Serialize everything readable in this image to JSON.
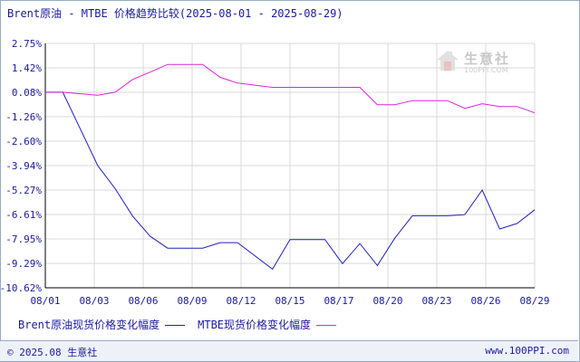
{
  "title": "Brent原油 - MTBE 价格趋势比较(2025-08-01 - 2025-08-29)",
  "watermark": {
    "name": "生意社",
    "url": "100PPI.COM"
  },
  "footer": {
    "copyright": "© 2025.08 生意社",
    "site": "www.100PPI.com"
  },
  "colors": {
    "brent": "#2020c0",
    "mtbe": "#e020e0",
    "grid": "#d8d8d8",
    "axis": "#000000",
    "text": "#1a1aa0"
  },
  "chart_data": {
    "type": "line",
    "title": "Brent原油 - MTBE 价格趋势比较(2025-08-01 - 2025-08-29)",
    "xlabel": "",
    "ylabel": "",
    "x_tick_labels": [
      "08/01",
      "08/03",
      "08/06",
      "08/09",
      "08/12",
      "08/15",
      "08/17",
      "08/20",
      "08/23",
      "08/26",
      "08/29"
    ],
    "y_tick_labels": [
      "2.75%",
      "1.42%",
      "0.08%",
      "-1.26%",
      "-2.60%",
      "-3.94%",
      "-5.27%",
      "-6.61%",
      "-7.95%",
      "-9.29%",
      "-10.62%"
    ],
    "ylim": [
      -10.62,
      2.75
    ],
    "x": [
      "08/01",
      "08/02",
      "08/03",
      "08/04",
      "08/05",
      "08/06",
      "08/07",
      "08/08",
      "08/09",
      "08/10",
      "08/11",
      "08/12",
      "08/13",
      "08/14",
      "08/15",
      "08/16",
      "08/17",
      "08/18",
      "08/19",
      "08/20",
      "08/21",
      "08/22",
      "08/23",
      "08/24",
      "08/25",
      "08/26",
      "08/27",
      "08/28",
      "08/29"
    ],
    "grid": true,
    "legend_position": "bottom",
    "series": [
      {
        "name": "Brent原油现货价格变化幅度",
        "color": "#2020c0",
        "values": [
          0.08,
          0.08,
          null,
          -3.94,
          -5.2,
          -6.7,
          -7.8,
          -8.45,
          -8.45,
          -8.45,
          -8.15,
          -8.15,
          null,
          -9.6,
          -7.98,
          -7.98,
          -7.98,
          -9.3,
          -8.2,
          -9.4,
          -7.9,
          -6.68,
          -6.68,
          -6.68,
          -6.62,
          -5.27,
          -7.4,
          -7.1,
          -6.35
        ]
      },
      {
        "name": "MTBE现货价格变化幅度",
        "color": "#e020e0",
        "values": [
          0.08,
          0.08,
          null,
          -0.08,
          0.08,
          0.78,
          1.18,
          1.6,
          1.6,
          1.6,
          0.9,
          0.58,
          null,
          0.35,
          0.35,
          0.35,
          0.35,
          0.35,
          0.35,
          -0.6,
          -0.6,
          -0.38,
          -0.38,
          -0.38,
          -0.8,
          -0.55,
          -0.7,
          -0.7,
          -1.05
        ]
      }
    ]
  }
}
